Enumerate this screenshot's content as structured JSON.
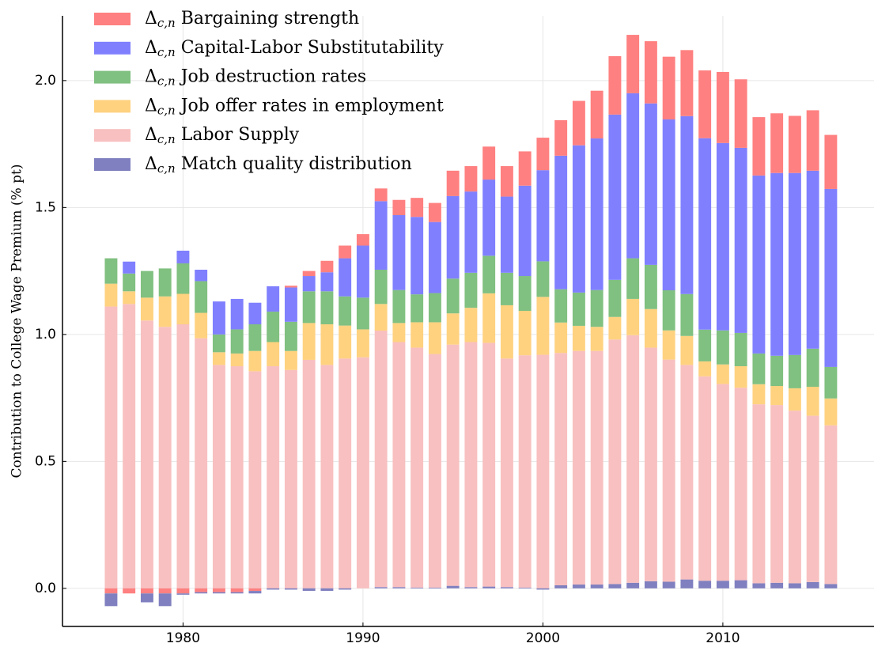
{
  "chart_data": {
    "type": "stacked_bar",
    "y_label": "Contribution to College Wage Premium (% pt)",
    "x": [
      1976,
      1977,
      1978,
      1979,
      1980,
      1981,
      1982,
      1983,
      1984,
      1985,
      1986,
      1987,
      1988,
      1989,
      1990,
      1991,
      1992,
      1993,
      1994,
      1995,
      1996,
      1997,
      1998,
      1999,
      2000,
      2001,
      2002,
      2003,
      2004,
      2005,
      2006,
      2007,
      2008,
      2009,
      2010,
      2011,
      2012,
      2013,
      2014,
      2015,
      2016
    ],
    "series": [
      {
        "name": "Δc,n Bargaining strength",
        "color": "#ff8080",
        "values": [
          -0.02,
          -0.02,
          -0.02,
          -0.02,
          -0.02,
          -0.015,
          -0.015,
          -0.015,
          -0.01,
          0,
          0.007,
          0.02,
          0.045,
          0.05,
          0.045,
          0.05,
          0.06,
          0.075,
          0.075,
          0.1,
          0.1,
          0.13,
          0.12,
          0.135,
          0.128,
          0.14,
          0.175,
          0.188,
          0.23,
          0.23,
          0.245,
          0.247,
          0.26,
          0.267,
          0.28,
          0.27,
          0.23,
          0.235,
          0.225,
          0.238,
          0.213
        ]
      },
      {
        "name": "Δc,n Capital-Labor Substitutability",
        "color": "#8080ff",
        "values": [
          0,
          0.047,
          0,
          0,
          0.05,
          0.045,
          0.13,
          0.12,
          0.085,
          0.1,
          0.135,
          0.06,
          0.075,
          0.15,
          0.205,
          0.27,
          0.295,
          0.305,
          0.28,
          0.325,
          0.32,
          0.3,
          0.3,
          0.356,
          0.359,
          0.526,
          0.58,
          0.597,
          0.651,
          0.65,
          0.636,
          0.673,
          0.701,
          0.754,
          0.738,
          0.729,
          0.701,
          0.72,
          0.717,
          0.701,
          0.701
        ]
      },
      {
        "name": "Δc,n Job destruction rates",
        "color": "#80c080",
        "values": [
          0.1,
          0.07,
          0.105,
          0.11,
          0.12,
          0.125,
          0.07,
          0.095,
          0.105,
          0.12,
          0.115,
          0.125,
          0.13,
          0.115,
          0.125,
          0.135,
          0.13,
          0.11,
          0.115,
          0.137,
          0.138,
          0.148,
          0.128,
          0.137,
          0.14,
          0.131,
          0.131,
          0.145,
          0.146,
          0.16,
          0.174,
          0.158,
          0.165,
          0.125,
          0.134,
          0.131,
          0.121,
          0.119,
          0.131,
          0.15,
          0.124
        ]
      },
      {
        "name": "Δc,n Job offer rates in employment",
        "color": "#ffd280",
        "values": [
          0.09,
          0.05,
          0.09,
          0.12,
          0.12,
          0.1,
          0.05,
          0.05,
          0.08,
          0.095,
          0.075,
          0.145,
          0.16,
          0.13,
          0.11,
          0.105,
          0.075,
          0.1,
          0.125,
          0.123,
          0.135,
          0.195,
          0.21,
          0.175,
          0.228,
          0.12,
          0.099,
          0.095,
          0.089,
          0.143,
          0.152,
          0.115,
          0.114,
          0.059,
          0.077,
          0.085,
          0.079,
          0.075,
          0.088,
          0.114,
          0.106
        ]
      },
      {
        "name": "Δc,n Labor Supply",
        "color": "#f8c0c0",
        "values": [
          1.11,
          1.12,
          1.055,
          1.03,
          1.04,
          0.985,
          0.88,
          0.875,
          0.855,
          0.875,
          0.86,
          0.9,
          0.88,
          0.905,
          0.91,
          1.01,
          0.965,
          0.945,
          0.92,
          0.95,
          0.965,
          0.96,
          0.9,
          0.915,
          0.92,
          0.915,
          0.92,
          0.92,
          0.963,
          0.975,
          0.92,
          0.875,
          0.845,
          0.805,
          0.775,
          0.758,
          0.705,
          0.7,
          0.68,
          0.655,
          0.625
        ]
      },
      {
        "name": "Δc,n Match quality distribution",
        "color": "#8080c0",
        "values": [
          -0.05,
          0,
          -0.035,
          -0.05,
          -0.005,
          -0.005,
          -0.005,
          -0.005,
          -0.01,
          -0.005,
          -0.005,
          -0.01,
          -0.01,
          -0.005,
          0,
          0.005,
          0.005,
          0.003,
          0.003,
          0.01,
          0.005,
          0.007,
          0.005,
          0.003,
          -0.005,
          0.012,
          0.015,
          0.015,
          0.017,
          0.022,
          0.028,
          0.026,
          0.035,
          0.03,
          0.03,
          0.032,
          0.02,
          0.022,
          0.02,
          0.025,
          0.017
        ]
      }
    ],
    "xlim": [
      1973.3,
      2018.4
    ],
    "xticks": [
      1980,
      1990,
      2000,
      2010
    ],
    "ylim": [
      -0.15,
      2.255
    ],
    "yticks": [
      {
        "value": 0,
        "label": "0.0"
      },
      {
        "value": 0.5,
        "label": "0.5"
      },
      {
        "value": 1,
        "label": "1.0"
      },
      {
        "value": 1.5,
        "label": "1.5"
      },
      {
        "value": 2,
        "label": "2.0"
      }
    ],
    "grid": true,
    "legend": "upper left"
  }
}
